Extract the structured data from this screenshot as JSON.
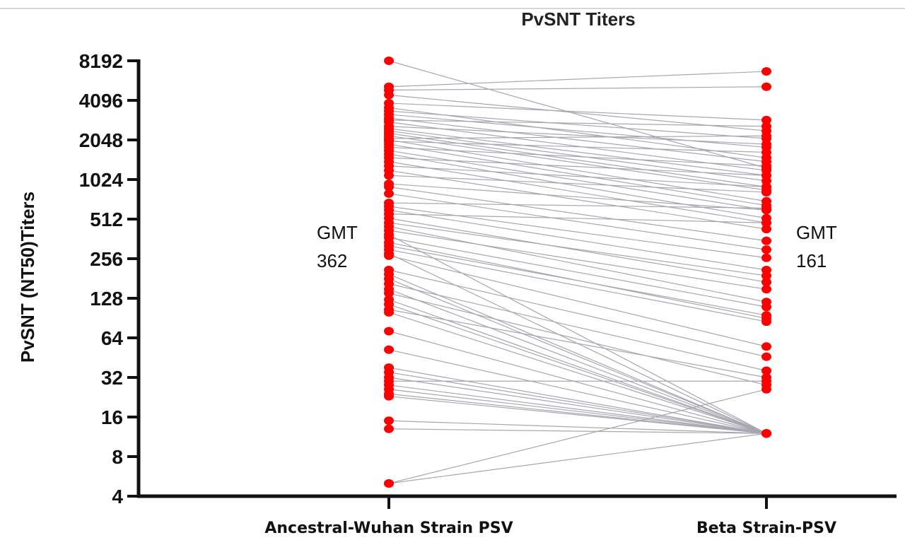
{
  "chart_data": {
    "type": "scatter",
    "title": "PvSNT Titers",
    "ylabel": "PvSNT (NT50)Titers",
    "xlabel": "",
    "y_scale": "log2",
    "ylim": [
      4,
      8192
    ],
    "y_ticks": [
      "8192",
      "4096",
      "2048",
      "1024",
      "512",
      "256",
      "128",
      "64",
      "32",
      "16",
      "8",
      "4"
    ],
    "categories": [
      "Ancestral-Wuhan Strain PSV",
      "Beta Strain-PSV"
    ],
    "colors": {
      "points": "#ff0000",
      "lines": "#a6a6b0",
      "axis": "#111111"
    },
    "annotations": [
      {
        "label": "GMT",
        "value": "362",
        "group": "Ancestral-Wuhan Strain PSV"
      },
      {
        "label": "GMT",
        "value": "161",
        "group": "Beta Strain-PSV"
      }
    ],
    "paired_samples": [
      [
        8192,
        1250
      ],
      [
        5200,
        6800
      ],
      [
        4900,
        5200
      ],
      [
        4500,
        2400
      ],
      [
        3900,
        2900
      ],
      [
        3600,
        1500
      ],
      [
        3400,
        2100
      ],
      [
        3200,
        1800
      ],
      [
        3000,
        1400
      ],
      [
        2900,
        2600
      ],
      [
        2800,
        1200
      ],
      [
        2600,
        1900
      ],
      [
        2500,
        1100
      ],
      [
        2400,
        1000
      ],
      [
        2300,
        900
      ],
      [
        2200,
        850
      ],
      [
        2100,
        2200
      ],
      [
        2050,
        700
      ],
      [
        2000,
        1650
      ],
      [
        1900,
        650
      ],
      [
        1800,
        1300
      ],
      [
        1700,
        600
      ],
      [
        1600,
        520
      ],
      [
        1500,
        1100
      ],
      [
        1400,
        480
      ],
      [
        1300,
        900
      ],
      [
        1200,
        430
      ],
      [
        1100,
        820
      ],
      [
        950,
        600
      ],
      [
        900,
        350
      ],
      [
        800,
        300
      ],
      [
        680,
        620
      ],
      [
        640,
        260
      ],
      [
        600,
        210
      ],
      [
        560,
        480
      ],
      [
        520,
        170
      ],
      [
        480,
        190
      ],
      [
        450,
        120
      ],
      [
        420,
        150
      ],
      [
        390,
        12
      ],
      [
        370,
        110
      ],
      [
        340,
        90
      ],
      [
        320,
        95
      ],
      [
        300,
        85
      ],
      [
        280,
        12
      ],
      [
        270,
        55
      ],
      [
        210,
        46
      ],
      [
        195,
        12
      ],
      [
        180,
        12
      ],
      [
        165,
        36
      ],
      [
        150,
        12
      ],
      [
        140,
        28
      ],
      [
        125,
        12
      ],
      [
        115,
        12
      ],
      [
        105,
        32
      ],
      [
        100,
        12
      ],
      [
        72,
        12
      ],
      [
        52,
        12
      ],
      [
        38,
        12
      ],
      [
        35,
        12
      ],
      [
        32,
        12
      ],
      [
        30,
        30
      ],
      [
        28,
        12
      ],
      [
        26,
        12
      ],
      [
        24,
        12
      ],
      [
        23,
        12
      ],
      [
        15,
        12
      ],
      [
        13,
        12
      ],
      [
        5,
        12
      ],
      [
        5,
        26
      ]
    ]
  }
}
